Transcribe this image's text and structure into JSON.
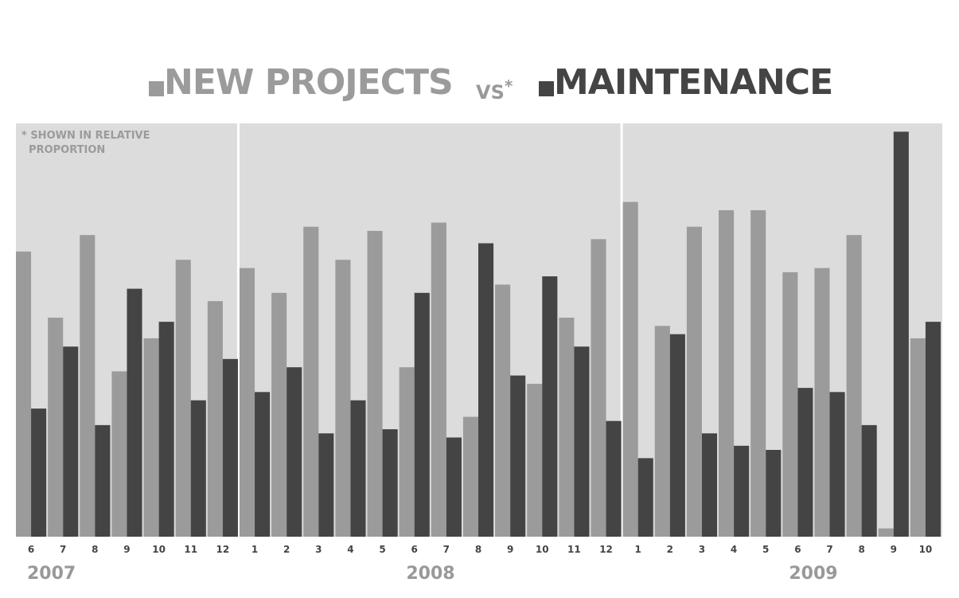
{
  "title": {
    "series1_label": "NEW PROJECTS",
    "vs_label": "VS",
    "vs_mark": "*",
    "series2_label": "MAINTENANCE"
  },
  "note": "* SHOWN IN RELATIVE\n  PROPORTION",
  "colors": {
    "new_projects": "#9b9b9b",
    "maintenance": "#444444",
    "panel": "#dcdcdc",
    "label": "#444444",
    "year": "#999999"
  },
  "chart_data": {
    "type": "bar",
    "title": "NEW PROJECTS vs* MAINTENANCE",
    "xlabel": "",
    "ylabel": "",
    "ylim": [
      0,
      100
    ],
    "grid": false,
    "legend": "top",
    "annotation": "* SHOWN IN RELATIVE PROPORTION",
    "groups": [
      {
        "year": "2007",
        "months": [
          "6",
          "7",
          "8",
          "9",
          "10",
          "11",
          "12"
        ]
      },
      {
        "year": "2008",
        "months": [
          "1",
          "2",
          "3",
          "4",
          "5",
          "6",
          "7",
          "8",
          "9",
          "10",
          "11",
          "12"
        ]
      },
      {
        "year": "2009",
        "months": [
          "1",
          "2",
          "3",
          "4",
          "5",
          "6",
          "7",
          "8",
          "9",
          "10"
        ]
      }
    ],
    "categories": [
      "2007-6",
      "2007-7",
      "2007-8",
      "2007-9",
      "2007-10",
      "2007-11",
      "2007-12",
      "2008-1",
      "2008-2",
      "2008-3",
      "2008-4",
      "2008-5",
      "2008-6",
      "2008-7",
      "2008-8",
      "2008-9",
      "2008-10",
      "2008-11",
      "2008-12",
      "2009-1",
      "2009-2",
      "2009-3",
      "2009-4",
      "2009-5",
      "2009-6",
      "2009-7",
      "2009-8",
      "2009-9",
      "2009-10"
    ],
    "series": [
      {
        "name": "NEW PROJECTS",
        "values": [
          69,
          53,
          73,
          40,
          48,
          67,
          57,
          65,
          59,
          75,
          67,
          74,
          41,
          76,
          29,
          61,
          37,
          53,
          72,
          81,
          51,
          75,
          79,
          79,
          64,
          65,
          73,
          2,
          48
        ]
      },
      {
        "name": "MAINTENANCE",
        "values": [
          31,
          46,
          27,
          60,
          52,
          33,
          43,
          35,
          41,
          25,
          33,
          26,
          59,
          24,
          71,
          39,
          63,
          46,
          28,
          19,
          49,
          25,
          22,
          21,
          36,
          35,
          27,
          98,
          52
        ]
      }
    ]
  }
}
